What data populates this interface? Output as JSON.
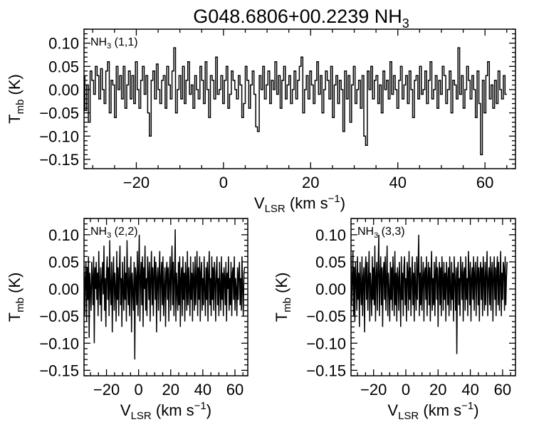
{
  "figure": {
    "title_main": "G048.6806+00.2239 NH",
    "title_sub": "3"
  },
  "chart_data": [
    {
      "type": "line",
      "step": true,
      "panel": "top",
      "label_main": "NH",
      "label_sub": "3",
      "label_rest": " (1,1)",
      "ylabel_main": "T",
      "ylabel_sub": "mb",
      "ylabel_rest": " (K)",
      "xlabel_main": "V",
      "xlabel_sub": "LSR",
      "xlabel_rest": " (km s",
      "xlabel_sup": "−1",
      "xlabel_end": ")",
      "xlim": [
        -32,
        67
      ],
      "ylim": [
        -0.17,
        0.13
      ],
      "xticks": [
        -20,
        0,
        20,
        40,
        60
      ],
      "xtick_labels": [
        "−20",
        "0",
        "20",
        "40",
        "60"
      ],
      "yticks": [
        -0.15,
        -0.1,
        -0.05,
        0.0,
        0.05,
        0.1
      ],
      "ytick_labels": [
        "−0.15",
        "−0.10",
        "−0.05",
        "0.00",
        "0.05",
        "0.10"
      ],
      "x_start": -32,
      "x_step": 0.4,
      "y": [
        0.028,
        -0.045,
        0.01,
        -0.07,
        0.04,
        0.02,
        -0.01,
        0.05,
        0.03,
        -0.02,
        0.045,
        0.0,
        -0.03,
        0.04,
        0.06,
        -0.05,
        0.02,
        0.01,
        -0.06,
        0.05,
        0.0,
        0.03,
        -0.02,
        0.05,
        -0.04,
        0.01,
        0.04,
        -0.02,
        0.03,
        -0.03,
        0.06,
        0.0,
        -0.04,
        0.02,
        0.05,
        -0.01,
        0.03,
        -0.05,
        -0.1,
        0.02,
        0.04,
        -0.02,
        0.055,
        0.0,
        -0.03,
        0.02,
        0.03,
        -0.04,
        0.05,
        0.01,
        -0.02,
        0.04,
        0.09,
        -0.05,
        0.0,
        0.03,
        -0.02,
        0.05,
        -0.03,
        0.02,
        0.06,
        -0.01,
        0.01,
        -0.04,
        0.03,
        0.0,
        -0.02,
        0.05,
        0.02,
        -0.03,
        0.06,
        0.0,
        -0.06,
        0.03,
        0.02,
        -0.02,
        0.07,
        -0.01,
        0.0,
        0.03,
        -0.03,
        0.02,
        0.05,
        -0.04,
        -0.01,
        0.04,
        0.02,
        0.0,
        -0.02,
        0.03,
        0.01,
        -0.06,
        -0.03,
        0.05,
        0.02,
        -0.04,
        0.01,
        0.04,
        -0.01,
        -0.08,
        -0.09,
        0.03,
        0.0,
        0.05,
        -0.02,
        0.01,
        0.04,
        -0.03,
        0.02,
        0.0,
        0.06,
        -0.01,
        0.03,
        -0.04,
        0.02,
        0.05,
        -0.02,
        0.01,
        0.03,
        -0.03,
        0.0,
        0.04,
        -0.02,
        0.02,
        0.05,
        0.07,
        -0.05,
        0.0,
        0.03,
        -0.02,
        0.04,
        0.01,
        -0.03,
        0.02,
        0.06,
        -0.01,
        0.03,
        -0.05,
        0.0,
        0.04,
        0.02,
        -0.02,
        0.05,
        -0.06,
        0.01,
        0.03,
        -0.03,
        0.02,
        0.0,
        -0.09,
        0.04,
        -0.02,
        0.03,
        -0.07,
        0.01,
        0.05,
        -0.03,
        0.0,
        0.02,
        -0.04,
        0.03,
        -0.1,
        -0.12,
        0.04,
        0.0,
        0.05,
        -0.02,
        0.02,
        0.03,
        -0.03,
        0.01,
        -0.05,
        0.04,
        0.0,
        0.02,
        -0.02,
        0.06,
        -0.01,
        0.03,
        0.0,
        -0.04,
        0.02,
        0.05,
        -0.02,
        0.01,
        0.03,
        -0.03,
        0.04,
        0.0,
        -0.06,
        0.02,
        0.03,
        -0.02,
        0.05,
        -0.01,
        0.0,
        0.04,
        -0.03,
        0.02,
        0.06,
        -0.02,
        0.0,
        0.03,
        -0.04,
        0.02,
        -0.01,
        0.05,
        0.03,
        -0.03,
        0.0,
        0.04,
        -0.05,
        0.02,
        0.01,
        -0.02,
        0.09,
        -0.01,
        0.03,
        -0.04,
        0.0,
        0.05,
        0.02,
        -0.02,
        0.03,
        0.0,
        -0.06,
        0.04,
        -0.03,
        -0.14,
        0.02,
        -0.05,
        0.03,
        0.06,
        -0.02,
        0.01,
        -0.04,
        0.02,
        -0.03,
        0.04,
        0.0,
        -0.02,
        0.03,
        -0.01
      ]
    },
    {
      "type": "line",
      "step": false,
      "panel": "bottom-left",
      "label_main": "NH",
      "label_sub": "3",
      "label_rest": " (2,2)",
      "ylabel_main": "T",
      "ylabel_sub": "mb",
      "ylabel_rest": " (K)",
      "xlabel_main": "V",
      "xlabel_sub": "LSR",
      "xlabel_rest": " (km s",
      "xlabel_sup": "−1",
      "xlabel_end": ")",
      "xlim": [
        -34,
        68
      ],
      "ylim": [
        -0.16,
        0.13
      ],
      "xticks": [
        -20,
        0,
        20,
        40,
        60
      ],
      "xtick_labels": [
        "−20",
        "0",
        "20",
        "40",
        "60"
      ],
      "yticks": [
        -0.15,
        -0.1,
        -0.05,
        0.0,
        0.05,
        0.1
      ],
      "ytick_labels": [
        "−0.15",
        "−0.10",
        "−0.05",
        "0.00",
        "0.05",
        "0.10"
      ],
      "x_start": -34,
      "x_step": 0.4,
      "y": [
        0.03,
        -0.05,
        0.02,
        0.05,
        -0.06,
        0.04,
        -0.02,
        0.06,
        -0.09,
        0.03,
        0.0,
        -0.04,
        0.05,
        0.02,
        -0.03,
        0.06,
        -0.1,
        0.04,
        0.0,
        0.05,
        -0.02,
        0.03,
        -0.05,
        0.07,
        0.01,
        -0.03,
        0.04,
        -0.06,
        0.02,
        0.05,
        -0.01,
        0.08,
        -0.04,
        0.02,
        -0.07,
        0.03,
        0.06,
        -0.02,
        0.04,
        -0.05,
        0.09,
        0.0,
        -0.03,
        0.05,
        -0.08,
        0.02,
        0.06,
        -0.04,
        0.03,
        0.0,
        -0.06,
        0.07,
        -0.02,
        0.04,
        -0.05,
        0.03,
        0.08,
        -0.03,
        0.02,
        -0.07,
        0.05,
        0.0,
        -0.04,
        0.06,
        -0.02,
        0.03,
        -0.06,
        0.09,
        0.01,
        -0.03,
        0.04,
        -0.05,
        0.02,
        0.06,
        -0.08,
        0.03,
        0.0,
        -0.04,
        0.05,
        -0.13,
        0.04,
        0.02,
        -0.03,
        0.07,
        -0.05,
        0.03,
        0.1,
        -0.06,
        0.02,
        0.05,
        -0.03,
        0.06,
        -0.07,
        0.04,
        0.0,
        0.08,
        -0.04,
        0.02,
        -0.05,
        0.06,
        0.03,
        -0.02,
        0.05,
        -0.06,
        0.02,
        0.07,
        -0.03,
        0.04,
        -0.05,
        0.03,
        0.06,
        -0.02,
        0.05,
        -0.08,
        0.02,
        0.04,
        -0.04,
        0.03,
        0.07,
        -0.06,
        0.02,
        0.05,
        -0.03,
        0.06,
        -0.05,
        0.0,
        0.04,
        -0.07,
        0.03,
        0.05,
        -0.02,
        0.04,
        -0.06,
        0.02,
        0.06,
        -0.04,
        0.03,
        0.08,
        -0.03,
        0.05,
        -0.05,
        0.02,
        0.11,
        -0.06,
        0.03,
        0.0,
        -0.04,
        0.05,
        -0.03,
        0.06,
        -0.07,
        0.02,
        0.04,
        -0.05,
        0.06,
        -0.02,
        0.03,
        -0.06,
        0.05,
        0.02,
        -0.04,
        0.07,
        -0.03,
        0.04,
        0.0,
        -0.05,
        0.06,
        -0.02,
        0.03,
        -0.06,
        0.05,
        0.02,
        -0.04,
        0.06,
        -0.03,
        0.02,
        0.07,
        -0.05,
        0.04,
        -0.02,
        0.06,
        -0.06,
        0.03,
        0.05,
        -0.04,
        0.02,
        -0.03,
        0.06,
        0.0,
        -0.05,
        0.04,
        -0.02,
        0.05,
        -0.06,
        0.03,
        0.07,
        -0.03,
        0.02,
        -0.05,
        0.06,
        -0.02,
        0.04,
        -0.04,
        0.05,
        0.02,
        -0.06,
        0.03,
        0.06,
        -0.03,
        0.02,
        -0.05,
        0.05,
        0.0,
        -0.04,
        0.06,
        -0.02,
        0.03,
        -0.05,
        0.04,
        0.02,
        -0.03,
        0.05,
        -0.06,
        0.03,
        0.0,
        0.06,
        -0.04,
        0.02,
        -0.03,
        0.05,
        -0.05,
        0.03,
        0.04,
        -0.02,
        0.06,
        -0.04,
        0.02,
        0.0,
        -0.05,
        0.04,
        -0.02,
        0.03,
        0.05,
        -0.03,
        0.02,
        -0.04,
        0.06,
        0.0,
        -0.05,
        0.03,
        0.04
      ]
    },
    {
      "type": "line",
      "step": false,
      "panel": "bottom-right",
      "label_main": "NH",
      "label_sub": "3",
      "label_rest": " (3,3)",
      "ylabel_main": "T",
      "ylabel_sub": "mb",
      "ylabel_rest": " (K)",
      "xlabel_main": "V",
      "xlabel_sub": "LSR",
      "xlabel_rest": " (km s",
      "xlabel_sup": "−1",
      "xlabel_end": ")",
      "xlim": [
        -34,
        68
      ],
      "ylim": [
        -0.16,
        0.13
      ],
      "xticks": [
        -20,
        0,
        20,
        40,
        60
      ],
      "xtick_labels": [
        "−20",
        "0",
        "20",
        "40",
        "60"
      ],
      "yticks": [
        -0.15,
        -0.1,
        -0.05,
        0.0,
        0.05,
        0.1
      ],
      "ytick_labels": [
        "−0.15",
        "−0.10",
        "−0.05",
        "0.00",
        "0.05",
        "0.10"
      ],
      "x_start": -34,
      "x_step": 0.4,
      "y": [
        0.06,
        -0.03,
        0.02,
        0.07,
        -0.05,
        0.04,
        -0.06,
        0.05,
        0.02,
        -0.04,
        0.06,
        -0.02,
        0.03,
        -0.07,
        0.05,
        0.0,
        -0.03,
        0.06,
        -0.05,
        0.02,
        0.04,
        -0.08,
        0.03,
        0.06,
        -0.02,
        0.05,
        -0.04,
        0.02,
        0.07,
        -0.06,
        0.03,
        0.0,
        -0.05,
        0.06,
        -0.02,
        0.04,
        -0.03,
        0.08,
        -0.06,
        0.02,
        0.05,
        -0.04,
        0.03,
        0.1,
        -0.05,
        0.02,
        0.06,
        -0.03,
        0.04,
        -0.07,
        0.03,
        0.05,
        -0.02,
        0.06,
        -0.04,
        0.02,
        0.08,
        -0.05,
        0.03,
        0.0,
        -0.06,
        0.05,
        -0.02,
        0.04,
        -0.04,
        0.06,
        0.02,
        -0.05,
        0.07,
        -0.03,
        0.03,
        -0.06,
        0.04,
        0.02,
        -0.04,
        0.05,
        0.0,
        -0.07,
        0.06,
        -0.02,
        0.03,
        -0.05,
        0.04,
        0.06,
        -0.03,
        0.02,
        -0.06,
        0.05,
        0.03,
        -0.04,
        0.07,
        -0.02,
        0.04,
        -0.05,
        0.02,
        0.06,
        -0.03,
        0.03,
        -0.06,
        0.05,
        0.0,
        -0.04,
        0.06,
        -0.02,
        0.04,
        0.1,
        -0.05,
        0.03,
        -0.03,
        0.06,
        -0.04,
        0.02,
        0.05,
        -0.06,
        0.03,
        0.04,
        -0.02,
        0.06,
        -0.05,
        0.02,
        0.05,
        -0.03,
        0.04,
        -0.06,
        0.03,
        0.07,
        -0.04,
        0.02,
        -0.03,
        0.05,
        -0.05,
        0.03,
        0.06,
        -0.02,
        0.04,
        -0.07,
        0.02,
        0.05,
        -0.03,
        0.04,
        -0.05,
        0.06,
        0.02,
        -0.04,
        0.05,
        -0.02,
        0.03,
        -0.06,
        0.05,
        0.02,
        -0.03,
        0.04,
        -0.05,
        0.06,
        0.0,
        -0.04,
        0.05,
        -0.02,
        0.03,
        -0.06,
        0.06,
        0.02,
        -0.04,
        0.04,
        -0.12,
        0.03,
        0.05,
        -0.03,
        0.02,
        -0.05,
        0.06,
        0.03,
        -0.02,
        0.05,
        -0.06,
        0.03,
        0.04,
        -0.04,
        0.06,
        -0.02,
        0.02,
        -0.05,
        0.07,
        0.03,
        -0.03,
        0.05,
        -0.06,
        0.02,
        0.04,
        -0.02,
        0.06,
        -0.04,
        0.03,
        0.05,
        -0.05,
        0.02,
        0.06,
        -0.03,
        0.04,
        -0.06,
        0.03,
        0.05,
        -0.02,
        0.04,
        -0.05,
        0.06,
        0.02,
        -0.04,
        0.05,
        -0.03,
        0.03,
        0.07,
        -0.05,
        0.02,
        0.04,
        -0.03,
        0.06,
        -0.04,
        0.03,
        0.05,
        -0.06,
        0.02,
        0.06,
        -0.02,
        0.04,
        -0.05,
        0.03,
        0.06,
        -0.03,
        0.05,
        -0.04,
        0.02,
        0.07,
        -0.05,
        0.03,
        -0.02,
        0.05,
        0.04,
        -0.04,
        0.06,
        -0.03,
        0.02,
        0.05
      ]
    }
  ]
}
